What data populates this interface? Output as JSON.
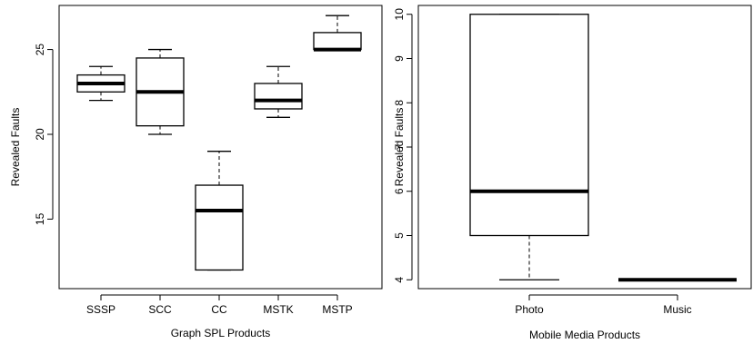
{
  "chart_data": [
    {
      "type": "box",
      "xlabel": "Graph SPL Products",
      "ylabel": "Revealed Faults",
      "ylim": [
        10.9,
        27.6
      ],
      "yticks": [
        15,
        20,
        25
      ],
      "categories": [
        "SSSP",
        "SCC",
        "CC",
        "MSTK",
        "MSTP"
      ],
      "boxes": [
        {
          "name": "SSSP",
          "min": 22,
          "q1": 22.5,
          "median": 23,
          "q3": 23.5,
          "max": 24
        },
        {
          "name": "SCC",
          "min": 20,
          "q1": 20.5,
          "median": 22.5,
          "q3": 24.5,
          "max": 25
        },
        {
          "name": "CC",
          "min": 12,
          "q1": 12,
          "median": 15.5,
          "q3": 17,
          "max": 19
        },
        {
          "name": "MSTK",
          "min": 21,
          "q1": 21.5,
          "median": 22,
          "q3": 23,
          "max": 24
        },
        {
          "name": "MSTP",
          "min": 25,
          "q1": 25,
          "median": 25,
          "q3": 26,
          "max": 27
        }
      ]
    },
    {
      "type": "box",
      "xlabel": "Mobile Media Products",
      "ylabel": "Revealed Faults",
      "ylim": [
        3.8,
        10.2
      ],
      "yticks": [
        4,
        5,
        6,
        7,
        8,
        9,
        10
      ],
      "categories": [
        "Photo",
        "Music"
      ],
      "boxes": [
        {
          "name": "Photo",
          "min": 4,
          "q1": 5,
          "median": 6,
          "q3": 10,
          "max": 10
        },
        {
          "name": "Music",
          "min": 4,
          "q1": 4,
          "median": 4,
          "q3": 4,
          "max": 4
        }
      ]
    }
  ]
}
